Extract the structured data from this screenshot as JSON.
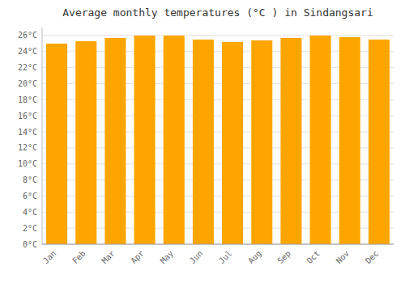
{
  "chart_data": {
    "type": "bar",
    "title": "Average monthly temperatures (°C ) in Sindangsari",
    "categories": [
      "Jan",
      "Feb",
      "Mar",
      "Apr",
      "May",
      "Jun",
      "Jul",
      "Aug",
      "Sep",
      "Oct",
      "Nov",
      "Dec"
    ],
    "values": [
      25.0,
      25.3,
      25.7,
      26.0,
      26.0,
      25.5,
      25.2,
      25.4,
      25.7,
      26.0,
      25.8,
      25.5
    ],
    "color": "#FFA500",
    "ylim": [
      0,
      27
    ],
    "yticks": [
      {
        "value": 0,
        "label": "0°C"
      },
      {
        "value": 2,
        "label": "2°C"
      },
      {
        "value": 4,
        "label": "4°C"
      },
      {
        "value": 6,
        "label": "6°C"
      },
      {
        "value": 8,
        "label": "8°C"
      },
      {
        "value": 10,
        "label": "10°C"
      },
      {
        "value": 12,
        "label": "12°C"
      },
      {
        "value": 14,
        "label": "14°C"
      },
      {
        "value": 16,
        "label": "16°C"
      },
      {
        "value": 18,
        "label": "18°C"
      },
      {
        "value": 20,
        "label": "20°C"
      },
      {
        "value": 22,
        "label": "22°C"
      },
      {
        "value": 24,
        "label": "24°C"
      },
      {
        "value": 26,
        "label": "26°C"
      }
    ],
    "grid": true
  }
}
